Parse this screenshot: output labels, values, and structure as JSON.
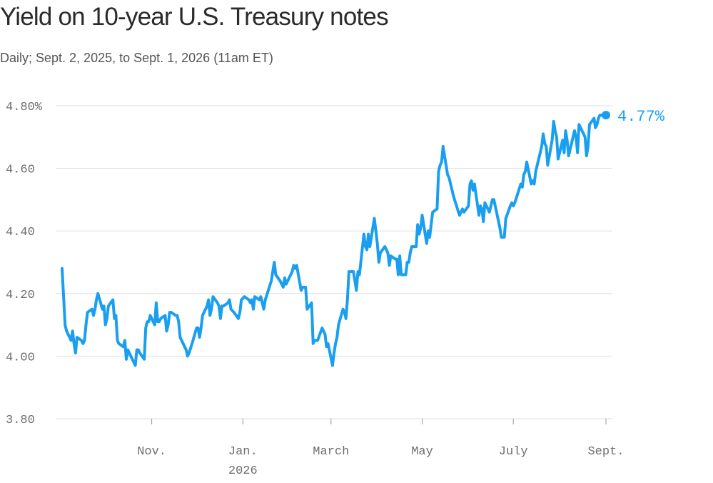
{
  "title": "Yield on 10-year U.S. Treasury notes",
  "subtitle": "Daily; Sept. 2, 2025, to Sept. 1, 2026 (11am ET)",
  "colors": {
    "line": "#1a9ff0",
    "grid": "#dddddd",
    "axis_text": "#6e6e6e"
  },
  "chart_data": {
    "type": "line",
    "title": "Yield on 10-year U.S. Treasury notes",
    "xlabel": "",
    "ylabel": "",
    "ylim": [
      3.8,
      4.8
    ],
    "xlim": [
      "2025-09-02",
      "2026-09-01"
    ],
    "grid": true,
    "y_ticks": [
      {
        "value": 4.8,
        "label": "4.80%"
      },
      {
        "value": 4.6,
        "label": "4.60"
      },
      {
        "value": 4.4,
        "label": "4.40"
      },
      {
        "value": 4.2,
        "label": "4.20"
      },
      {
        "value": 4.0,
        "label": "4.00"
      },
      {
        "value": 3.8,
        "label": "3.80"
      }
    ],
    "x_ticks": [
      {
        "date": "2025-11-01",
        "label": "Nov.",
        "sublabel": ""
      },
      {
        "date": "2026-01-01",
        "label": "Jan.",
        "sublabel": "2026"
      },
      {
        "date": "2026-03-01",
        "label": "March",
        "sublabel": ""
      },
      {
        "date": "2026-05-01",
        "label": "May",
        "sublabel": ""
      },
      {
        "date": "2026-07-01",
        "label": "July",
        "sublabel": ""
      },
      {
        "date": "2026-09-01",
        "label": "Sept.",
        "sublabel": ""
      }
    ],
    "end_label": "4.77%",
    "series": [
      {
        "values": [
          [
            "2025-09-02",
            4.28
          ],
          [
            "2025-09-03",
            4.19
          ],
          [
            "2025-09-04",
            4.1
          ],
          [
            "2025-09-05",
            4.08
          ],
          [
            "2025-09-08",
            4.05
          ],
          [
            "2025-09-09",
            4.08
          ],
          [
            "2025-09-10",
            4.04
          ],
          [
            "2025-09-11",
            4.01
          ],
          [
            "2025-09-12",
            4.06
          ],
          [
            "2025-09-15",
            4.05
          ],
          [
            "2025-09-16",
            4.04
          ],
          [
            "2025-09-17",
            4.05
          ],
          [
            "2025-09-18",
            4.1
          ],
          [
            "2025-09-19",
            4.14
          ],
          [
            "2025-09-22",
            4.15
          ],
          [
            "2025-09-23",
            4.13
          ],
          [
            "2025-09-24",
            4.15
          ],
          [
            "2025-09-25",
            4.18
          ],
          [
            "2025-09-26",
            4.2
          ],
          [
            "2025-09-29",
            4.15
          ],
          [
            "2025-09-30",
            4.16
          ],
          [
            "2025-10-01",
            4.1
          ],
          [
            "2025-10-02",
            4.12
          ],
          [
            "2025-10-03",
            4.16
          ],
          [
            "2025-10-06",
            4.18
          ],
          [
            "2025-10-07",
            4.12
          ],
          [
            "2025-10-08",
            4.13
          ],
          [
            "2025-10-09",
            4.05
          ],
          [
            "2025-10-10",
            4.04
          ],
          [
            "2025-10-13",
            4.03
          ],
          [
            "2025-10-14",
            4.05
          ],
          [
            "2025-10-15",
            3.99
          ],
          [
            "2025-10-16",
            4.02
          ],
          [
            "2025-10-17",
            4.01
          ],
          [
            "2025-10-20",
            3.98
          ],
          [
            "2025-10-21",
            3.97
          ],
          [
            "2025-10-22",
            4.02
          ],
          [
            "2025-10-23",
            4.02
          ],
          [
            "2025-10-24",
            4.01
          ],
          [
            "2025-10-27",
            3.99
          ],
          [
            "2025-10-28",
            4.09
          ],
          [
            "2025-10-29",
            4.11
          ],
          [
            "2025-10-30",
            4.11
          ],
          [
            "2025-10-31",
            4.13
          ],
          [
            "2025-11-03",
            4.1
          ],
          [
            "2025-11-04",
            4.17
          ],
          [
            "2025-11-05",
            4.11
          ],
          [
            "2025-11-06",
            4.11
          ],
          [
            "2025-11-07",
            4.12
          ],
          [
            "2025-11-10",
            4.13
          ],
          [
            "2025-11-11",
            4.08
          ],
          [
            "2025-11-12",
            4.1
          ],
          [
            "2025-11-13",
            4.14
          ],
          [
            "2025-11-14",
            4.14
          ],
          [
            "2025-11-17",
            4.13
          ],
          [
            "2025-11-18",
            4.13
          ],
          [
            "2025-11-19",
            4.11
          ],
          [
            "2025-11-20",
            4.06
          ],
          [
            "2025-11-21",
            4.05
          ],
          [
            "2025-11-24",
            4.02
          ],
          [
            "2025-11-25",
            4.0
          ],
          [
            "2025-11-26",
            4.01
          ],
          [
            "2025-11-28",
            4.04
          ],
          [
            "2025-12-01",
            4.09
          ],
          [
            "2025-12-02",
            4.09
          ],
          [
            "2025-12-03",
            4.06
          ],
          [
            "2025-12-04",
            4.09
          ],
          [
            "2025-12-05",
            4.13
          ],
          [
            "2025-12-08",
            4.16
          ],
          [
            "2025-12-09",
            4.18
          ],
          [
            "2025-12-10",
            4.13
          ],
          [
            "2025-12-11",
            4.15
          ],
          [
            "2025-12-12",
            4.19
          ],
          [
            "2025-12-15",
            4.17
          ],
          [
            "2025-12-16",
            4.16
          ],
          [
            "2025-12-17",
            4.12
          ],
          [
            "2025-12-18",
            4.16
          ],
          [
            "2025-12-19",
            4.16
          ],
          [
            "2025-12-22",
            4.17
          ],
          [
            "2025-12-23",
            4.18
          ],
          [
            "2025-12-24",
            4.15
          ],
          [
            "2025-12-26",
            4.14
          ],
          [
            "2025-12-29",
            4.12
          ],
          [
            "2025-12-30",
            4.14
          ],
          [
            "2025-12-31",
            4.18
          ],
          [
            "2026-01-02",
            4.19
          ],
          [
            "2026-01-05",
            4.18
          ],
          [
            "2026-01-06",
            4.17
          ],
          [
            "2026-01-07",
            4.18
          ],
          [
            "2026-01-08",
            4.15
          ],
          [
            "2026-01-09",
            4.19
          ],
          [
            "2026-01-12",
            4.18
          ],
          [
            "2026-01-13",
            4.19
          ],
          [
            "2026-01-14",
            4.17
          ],
          [
            "2026-01-15",
            4.15
          ],
          [
            "2026-01-16",
            4.18
          ],
          [
            "2026-01-20",
            4.24
          ],
          [
            "2026-01-21",
            4.27
          ],
          [
            "2026-01-22",
            4.3
          ],
          [
            "2026-01-23",
            4.26
          ],
          [
            "2026-01-26",
            4.24
          ],
          [
            "2026-01-27",
            4.23
          ],
          [
            "2026-01-28",
            4.22
          ],
          [
            "2026-01-29",
            4.25
          ],
          [
            "2026-01-30",
            4.23
          ],
          [
            "2026-02-02",
            4.26
          ],
          [
            "2026-02-03",
            4.27
          ],
          [
            "2026-02-04",
            4.29
          ],
          [
            "2026-02-05",
            4.28
          ],
          [
            "2026-02-06",
            4.29
          ],
          [
            "2026-02-09",
            4.21
          ],
          [
            "2026-02-10",
            4.22
          ],
          [
            "2026-02-11",
            4.22
          ],
          [
            "2026-02-12",
            4.22
          ],
          [
            "2026-02-13",
            4.15
          ],
          [
            "2026-02-16",
            4.17
          ],
          [
            "2026-02-17",
            4.04
          ],
          [
            "2026-02-18",
            4.05
          ],
          [
            "2026-02-19",
            4.05
          ],
          [
            "2026-02-20",
            4.05
          ],
          [
            "2026-02-23",
            4.09
          ],
          [
            "2026-02-24",
            4.08
          ],
          [
            "2026-02-25",
            4.07
          ],
          [
            "2026-02-26",
            4.03
          ],
          [
            "2026-02-27",
            4.04
          ],
          [
            "2026-03-02",
            3.97
          ],
          [
            "2026-03-03",
            4.01
          ],
          [
            "2026-03-04",
            4.04
          ],
          [
            "2026-03-05",
            4.06
          ],
          [
            "2026-03-06",
            4.1
          ],
          [
            "2026-03-09",
            4.15
          ],
          [
            "2026-03-10",
            4.14
          ],
          [
            "2026-03-11",
            4.12
          ],
          [
            "2026-03-12",
            4.18
          ],
          [
            "2026-03-13",
            4.27
          ],
          [
            "2026-03-16",
            4.27
          ],
          [
            "2026-03-17",
            4.24
          ],
          [
            "2026-03-18",
            4.21
          ],
          [
            "2026-03-19",
            4.27
          ],
          [
            "2026-03-20",
            4.26
          ],
          [
            "2026-03-23",
            4.39
          ],
          [
            "2026-03-24",
            4.35
          ],
          [
            "2026-03-25",
            4.34
          ],
          [
            "2026-03-26",
            4.39
          ],
          [
            "2026-03-27",
            4.35
          ],
          [
            "2026-03-30",
            4.44
          ],
          [
            "2026-03-31",
            4.4
          ],
          [
            "2026-04-01",
            4.36
          ],
          [
            "2026-04-02",
            4.3
          ],
          [
            "2026-04-03",
            4.33
          ],
          [
            "2026-04-06",
            4.35
          ],
          [
            "2026-04-07",
            4.34
          ],
          [
            "2026-04-08",
            4.33
          ],
          [
            "2026-04-09",
            4.29
          ],
          [
            "2026-04-10",
            4.32
          ],
          [
            "2026-04-13",
            4.31
          ],
          [
            "2026-04-14",
            4.31
          ],
          [
            "2026-04-15",
            4.26
          ],
          [
            "2026-04-16",
            4.32
          ],
          [
            "2026-04-17",
            4.26
          ],
          [
            "2026-04-20",
            4.26
          ],
          [
            "2026-04-21",
            4.3
          ],
          [
            "2026-04-22",
            4.3
          ],
          [
            "2026-04-23",
            4.33
          ],
          [
            "2026-04-24",
            4.35
          ],
          [
            "2026-04-27",
            4.35
          ],
          [
            "2026-04-28",
            4.42
          ],
          [
            "2026-04-29",
            4.39
          ],
          [
            "2026-04-30",
            4.41
          ],
          [
            "2026-05-01",
            4.45
          ],
          [
            "2026-05-04",
            4.36
          ],
          [
            "2026-05-05",
            4.4
          ],
          [
            "2026-05-06",
            4.38
          ],
          [
            "2026-05-07",
            4.42
          ],
          [
            "2026-05-08",
            4.46
          ],
          [
            "2026-05-11",
            4.47
          ],
          [
            "2026-05-12",
            4.59
          ],
          [
            "2026-05-13",
            4.61
          ],
          [
            "2026-05-14",
            4.62
          ],
          [
            "2026-05-15",
            4.67
          ],
          [
            "2026-05-18",
            4.58
          ],
          [
            "2026-05-19",
            4.57
          ],
          [
            "2026-05-20",
            4.55
          ],
          [
            "2026-05-21",
            4.53
          ],
          [
            "2026-05-22",
            4.51
          ],
          [
            "2026-05-26",
            4.45
          ],
          [
            "2026-05-27",
            4.46
          ],
          [
            "2026-05-28",
            4.47
          ],
          [
            "2026-05-29",
            4.46
          ],
          [
            "2026-06-01",
            4.48
          ],
          [
            "2026-06-02",
            4.55
          ],
          [
            "2026-06-03",
            4.56
          ],
          [
            "2026-06-04",
            4.53
          ],
          [
            "2026-06-05",
            4.55
          ],
          [
            "2026-06-08",
            4.45
          ],
          [
            "2026-06-09",
            4.48
          ],
          [
            "2026-06-10",
            4.47
          ],
          [
            "2026-06-11",
            4.43
          ],
          [
            "2026-06-12",
            4.49
          ],
          [
            "2026-06-15",
            4.46
          ],
          [
            "2026-06-16",
            4.48
          ],
          [
            "2026-06-17",
            4.5
          ],
          [
            "2026-06-18",
            4.5
          ],
          [
            "2026-06-22",
            4.41
          ],
          [
            "2026-06-23",
            4.38
          ],
          [
            "2026-06-24",
            4.38
          ],
          [
            "2026-06-25",
            4.38
          ],
          [
            "2026-06-26",
            4.44
          ],
          [
            "2026-06-29",
            4.48
          ],
          [
            "2026-06-30",
            4.49
          ],
          [
            "2026-07-01",
            4.48
          ],
          [
            "2026-07-02",
            4.49
          ],
          [
            "2026-07-06",
            4.55
          ],
          [
            "2026-07-07",
            4.54
          ],
          [
            "2026-07-08",
            4.58
          ],
          [
            "2026-07-09",
            4.59
          ],
          [
            "2026-07-10",
            4.62
          ],
          [
            "2026-07-13",
            4.55
          ],
          [
            "2026-07-14",
            4.56
          ],
          [
            "2026-07-15",
            4.55
          ],
          [
            "2026-07-16",
            4.59
          ],
          [
            "2026-07-17",
            4.61
          ],
          [
            "2026-07-20",
            4.67
          ],
          [
            "2026-07-21",
            4.71
          ],
          [
            "2026-07-22",
            4.68
          ],
          [
            "2026-07-23",
            4.67
          ],
          [
            "2026-07-24",
            4.61
          ],
          [
            "2026-07-27",
            4.69
          ],
          [
            "2026-07-28",
            4.75
          ],
          [
            "2026-07-29",
            4.72
          ],
          [
            "2026-07-30",
            4.7
          ],
          [
            "2026-07-31",
            4.63
          ],
          [
            "2026-08-03",
            4.69
          ],
          [
            "2026-08-04",
            4.65
          ],
          [
            "2026-08-05",
            4.72
          ],
          [
            "2026-08-06",
            4.69
          ],
          [
            "2026-08-07",
            4.64
          ],
          [
            "2026-08-10",
            4.7
          ],
          [
            "2026-08-11",
            4.72
          ],
          [
            "2026-08-12",
            4.7
          ],
          [
            "2026-08-13",
            4.65
          ],
          [
            "2026-08-14",
            4.74
          ],
          [
            "2026-08-17",
            4.71
          ],
          [
            "2026-08-18",
            4.7
          ],
          [
            "2026-08-19",
            4.64
          ],
          [
            "2026-08-20",
            4.67
          ],
          [
            "2026-08-21",
            4.74
          ],
          [
            "2026-08-24",
            4.76
          ],
          [
            "2026-08-25",
            4.73
          ],
          [
            "2026-08-26",
            4.74
          ],
          [
            "2026-08-27",
            4.76
          ],
          [
            "2026-08-28",
            4.77
          ],
          [
            "2026-08-31",
            4.77
          ],
          [
            "2026-09-01",
            4.77
          ]
        ]
      }
    ]
  }
}
